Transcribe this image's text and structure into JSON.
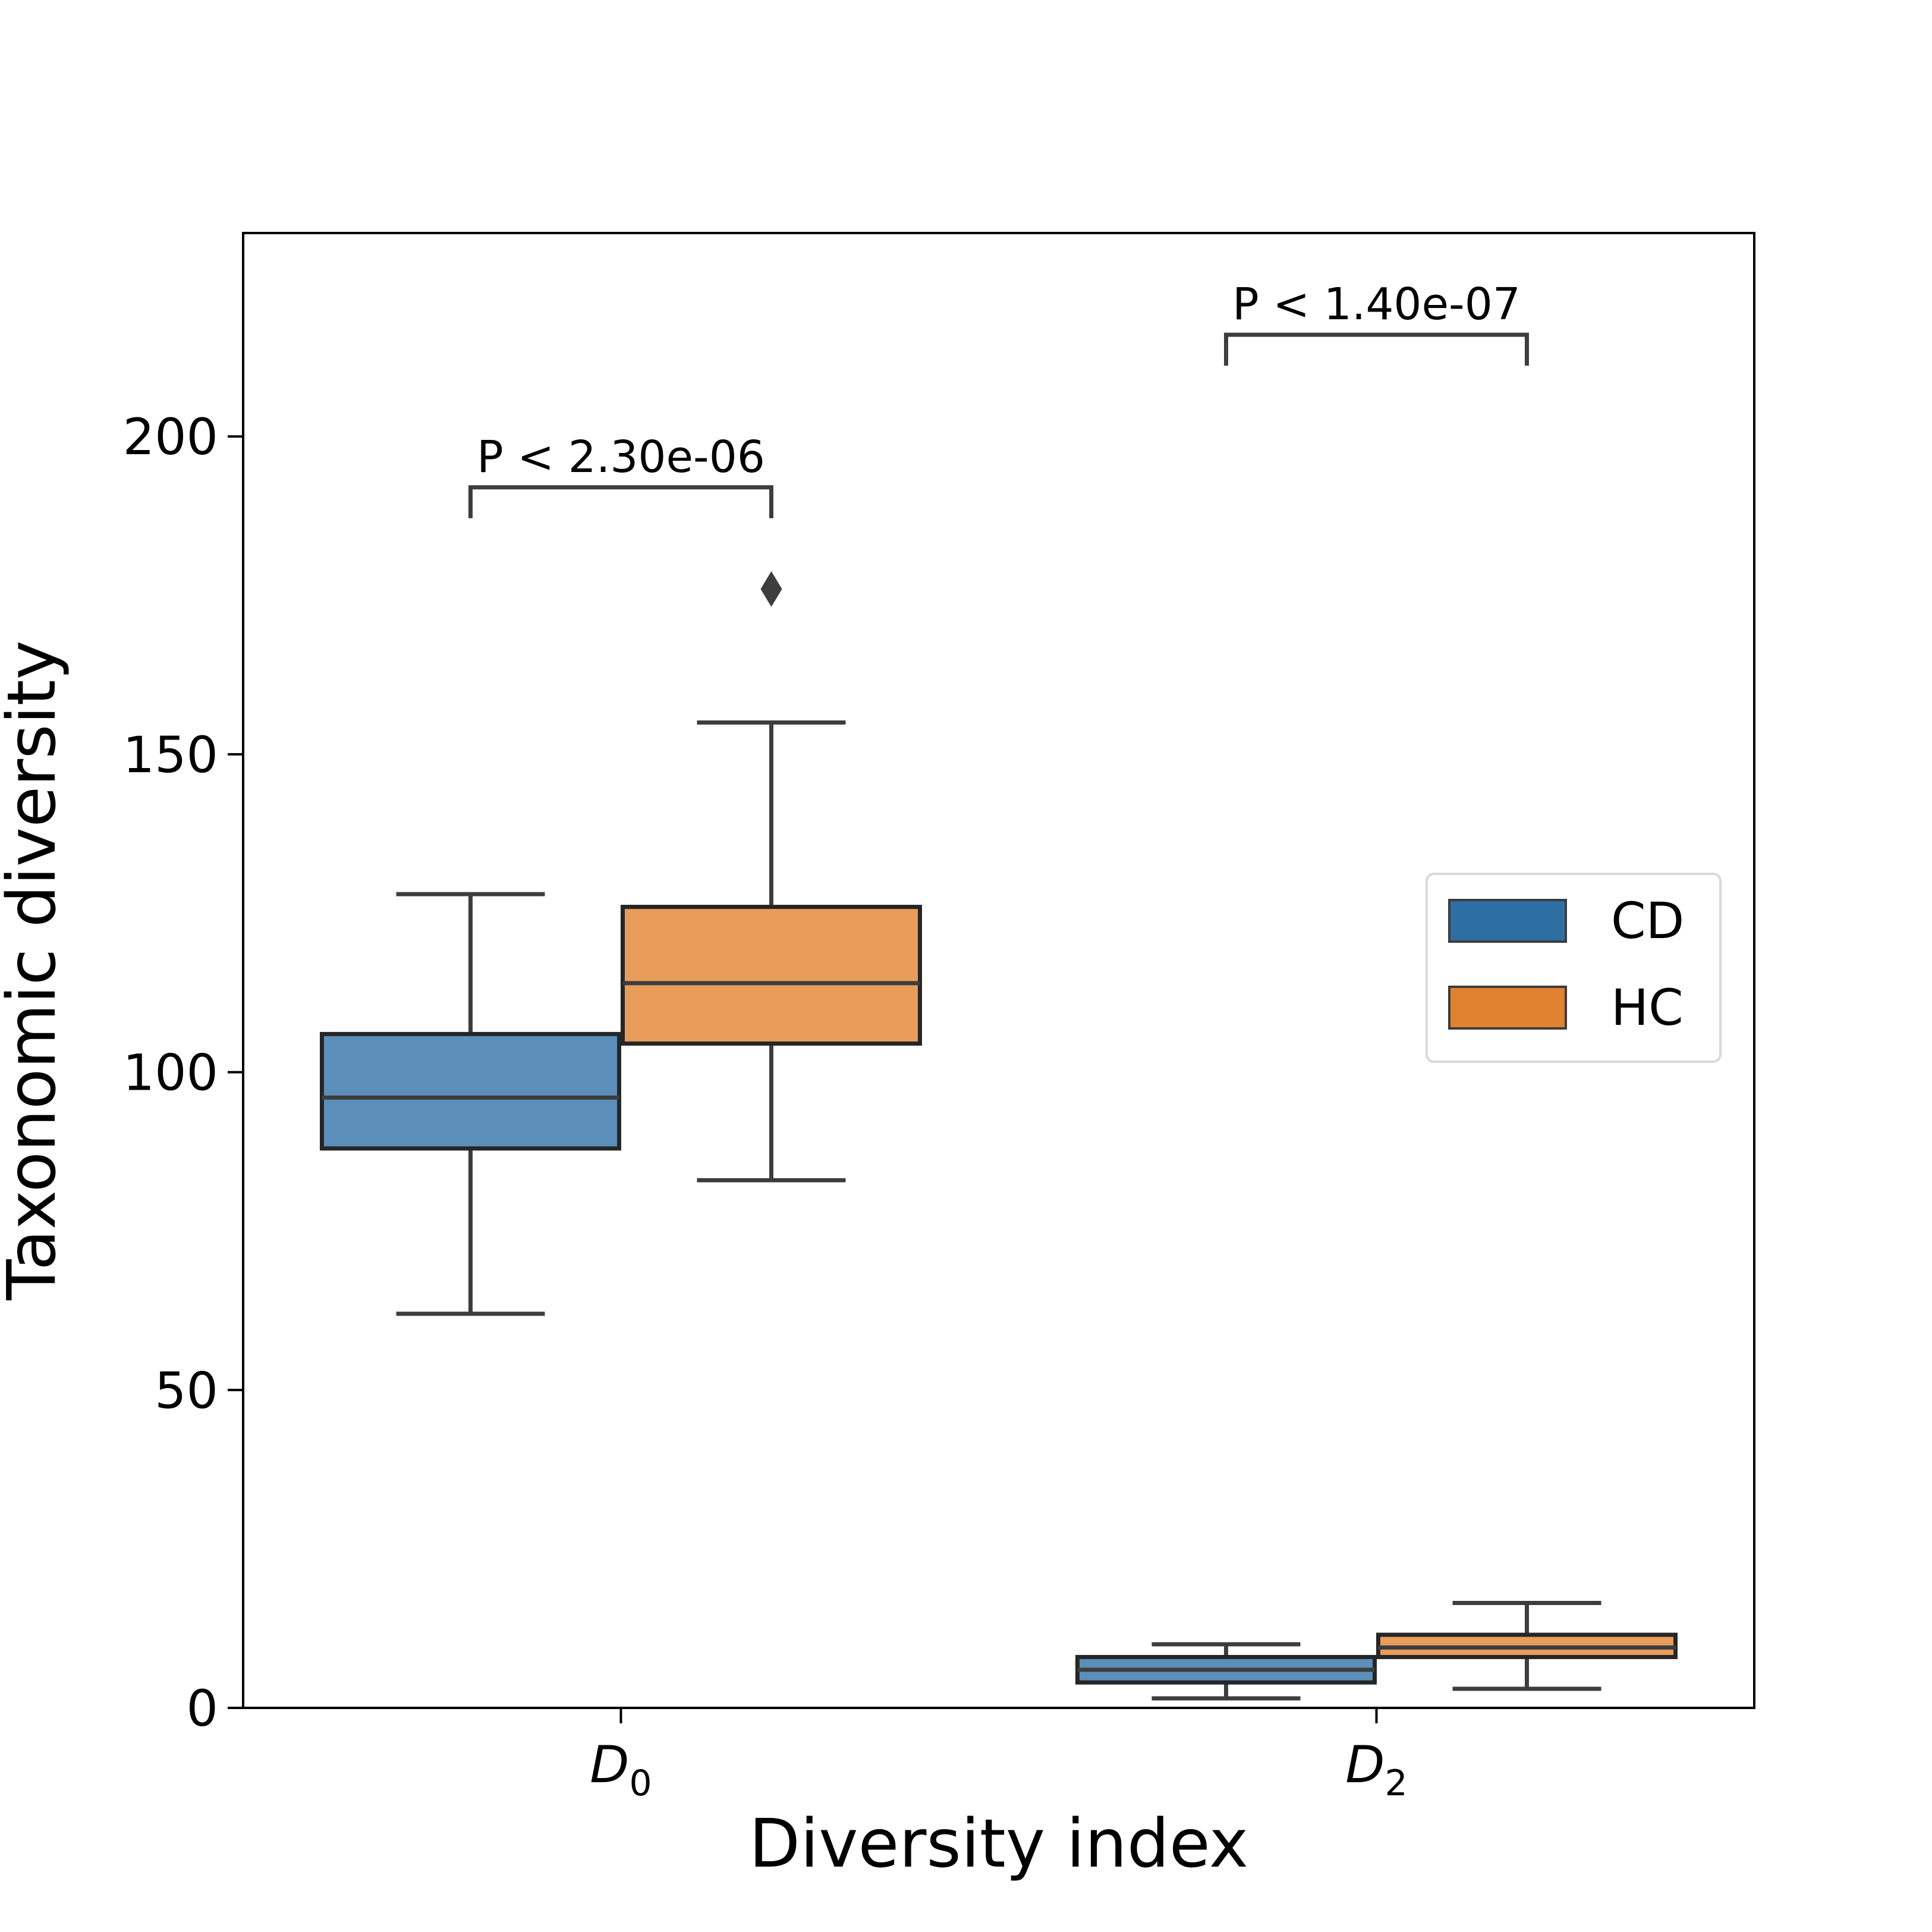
{
  "chart_data": {
    "type": "box",
    "xlabel": "Diversity index",
    "ylabel": "Taxonomic diversity",
    "ylim": [
      0,
      232
    ],
    "yticks": [
      0,
      50,
      100,
      150,
      200
    ],
    "grid": false,
    "legend_position": "center-right",
    "categories": [
      {
        "main": "D",
        "sub": "0"
      },
      {
        "main": "D",
        "sub": "2"
      }
    ],
    "series": [
      {
        "name": "CD",
        "color": "#5b8fb9",
        "legend_color": "#2e6fa3",
        "boxes": [
          {
            "whisker_low": 62,
            "q1": 88,
            "median": 96,
            "q3": 106,
            "whisker_high": 128,
            "outliers": []
          },
          {
            "whisker_low": 1.5,
            "q1": 4,
            "median": 6,
            "q3": 8,
            "whisker_high": 10,
            "outliers": []
          }
        ]
      },
      {
        "name": "HC",
        "color": "#e89c5a",
        "legend_color": "#e0822f",
        "boxes": [
          {
            "whisker_low": 83,
            "q1": 104.5,
            "median": 114,
            "q3": 126,
            "whisker_high": 155,
            "outliers": [
              176
            ]
          },
          {
            "whisker_low": 3,
            "q1": 8,
            "median": 9.5,
            "q3": 11.5,
            "whisker_high": 16.5,
            "outliers": []
          }
        ]
      }
    ],
    "annotations": [
      {
        "text": "P < 2.30e-06",
        "category_index": 0,
        "y": 192
      },
      {
        "text": "P < 1.40e-07",
        "category_index": 1,
        "y": 216
      }
    ]
  }
}
